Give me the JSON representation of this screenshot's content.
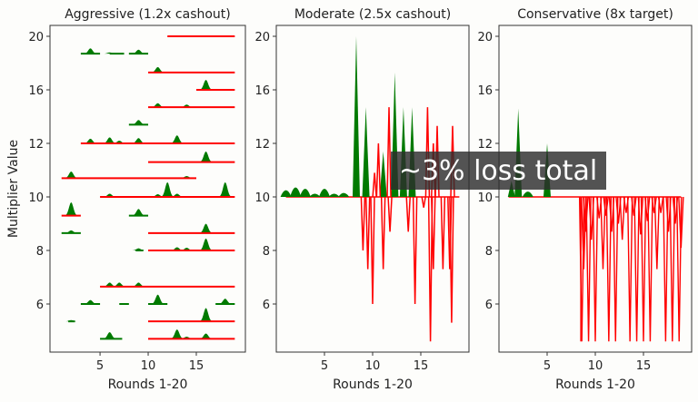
{
  "chart_data": [
    {
      "type": "line",
      "title": "Aggressive (1.2x cashout)",
      "xlabel": "Rounds 1-20",
      "ylabel": "Multiplier Value",
      "xticks": [
        5,
        10,
        15
      ],
      "yticks": [
        20,
        16,
        12,
        10,
        8,
        6
      ],
      "xlim": [
        -0.2,
        20.1
      ],
      "ylim": [
        4.2,
        20.8
      ],
      "colors": {
        "win": "#007a00",
        "loss": "#ff0000"
      },
      "rows": [
        {
          "y": 20,
          "red": [
            [
              12,
              19
            ]
          ],
          "green": [],
          "peaks": []
        },
        {
          "y": 18.7,
          "red": [],
          "green": [
            [
              3,
              5
            ],
            [
              6,
              7.5
            ],
            [
              8,
              10
            ]
          ],
          "peaks": [
            [
              4,
              19.1
            ],
            [
              6,
              18.8
            ],
            [
              9,
              19.0
            ]
          ]
        },
        {
          "y": 17.3,
          "red": [
            [
              10,
              19
            ]
          ],
          "green": [],
          "peaks": [
            [
              11,
              17.7
            ]
          ]
        },
        {
          "y": 16,
          "red": [
            [
              15,
              19
            ]
          ],
          "green": [],
          "peaks": [
            [
              16,
              16.75
            ]
          ]
        },
        {
          "y": 14.7,
          "red": [
            [
              10,
              19
            ]
          ],
          "green": [],
          "peaks": [
            [
              11,
              15.0
            ],
            [
              14,
              14.9
            ]
          ]
        },
        {
          "y": 13.4,
          "red": [],
          "green": [
            [
              8,
              10
            ]
          ],
          "peaks": [
            [
              9,
              13.75
            ]
          ]
        },
        {
          "y": 12,
          "red": [
            [
              3,
              19
            ]
          ],
          "green": [],
          "peaks": [
            [
              4,
              12.35
            ],
            [
              6,
              12.45
            ],
            [
              7,
              12.2
            ],
            [
              9,
              12.4
            ],
            [
              13,
              12.6
            ]
          ]
        },
        {
          "y": 11.3,
          "red": [
            [
              10,
              19
            ]
          ],
          "green": [],
          "peaks": [
            [
              16,
              11.7
            ]
          ]
        },
        {
          "y": 10.7,
          "red": [
            [
              1,
              15
            ]
          ],
          "green": [],
          "peaks": [
            [
              2,
              10.95
            ],
            [
              14,
              10.78
            ]
          ]
        },
        {
          "y": 10,
          "red": [
            [
              5,
              19
            ]
          ],
          "green": [],
          "peaks": [
            [
              6,
              10.12
            ],
            [
              11,
              10.1
            ],
            [
              12,
              10.55
            ],
            [
              13,
              10.12
            ],
            [
              18,
              10.55
            ]
          ]
        },
        {
          "y": 9.3,
          "red": [
            [
              1,
              3
            ]
          ],
          "green": [
            [
              8,
              10
            ]
          ],
          "peaks": [
            [
              2,
              9.8
            ],
            [
              9,
              9.55
            ]
          ]
        },
        {
          "y": 8.65,
          "red": [
            [
              10,
              19
            ]
          ],
          "green": [
            [
              1,
              3
            ]
          ],
          "peaks": [
            [
              2,
              8.75
            ],
            [
              16,
              9.0
            ]
          ]
        },
        {
          "y": 8,
          "red": [
            [
              10,
              19
            ]
          ],
          "green": [
            [
              8.7,
              9.5
            ]
          ],
          "peaks": [
            [
              9,
              8.08
            ],
            [
              13,
              8.12
            ],
            [
              14,
              8.1
            ],
            [
              16,
              8.45
            ]
          ]
        },
        {
          "y": 6.65,
          "red": [
            [
              5,
              19
            ]
          ],
          "green": [],
          "peaks": [
            [
              6,
              6.8
            ],
            [
              7,
              6.8
            ],
            [
              9,
              6.8
            ]
          ]
        },
        {
          "y": 6,
          "red": [],
          "green": [
            [
              3,
              5
            ],
            [
              7,
              8
            ],
            [
              10,
              12
            ],
            [
              17,
              19
            ]
          ],
          "peaks": [
            [
              4,
              6.15
            ],
            [
              11,
              6.35
            ],
            [
              18,
              6.2
            ]
          ]
        },
        {
          "y": 5.35,
          "red": [
            [
              10,
              19
            ]
          ],
          "green": [
            [
              1.7,
              2.4
            ]
          ],
          "peaks": [
            [
              2,
              5.4
            ],
            [
              16,
              5.85
            ]
          ]
        },
        {
          "y": 4.7,
          "red": [
            [
              10,
              19
            ]
          ],
          "green": [
            [
              5,
              7.3
            ]
          ],
          "peaks": [
            [
              6,
              4.95
            ],
            [
              13,
              5.05
            ],
            [
              14,
              4.78
            ],
            [
              16,
              4.9
            ]
          ]
        }
      ]
    },
    {
      "type": "line",
      "title": "Moderate (2.5x cashout)",
      "xlabel": "Rounds 1-20",
      "xticks": [
        5,
        10,
        15
      ],
      "yticks": [
        20,
        16,
        12,
        10,
        8,
        6
      ],
      "xlim": [
        0,
        20
      ],
      "ylim": [
        4.2,
        20.8
      ],
      "baseline": 10,
      "baseline_range": [
        1,
        19
      ],
      "green_spikes": [
        [
          1,
          10.25
        ],
        [
          2,
          10.35
        ],
        [
          3,
          10.3
        ],
        [
          4,
          10.12
        ],
        [
          5,
          10.3
        ],
        [
          6,
          10.12
        ],
        [
          7,
          10.15
        ],
        [
          8.3,
          20
        ],
        [
          9.3,
          14.7
        ],
        [
          11.1,
          11.7
        ],
        [
          12.3,
          17.3
        ],
        [
          13.2,
          14.7
        ],
        [
          14.1,
          14.7
        ]
      ],
      "red_spikes": [
        [
          9,
          8
        ],
        [
          9.5,
          7.3
        ],
        [
          10,
          6
        ],
        [
          10.2,
          10.9
        ],
        [
          10.6,
          12
        ],
        [
          11.1,
          7.3
        ],
        [
          11.7,
          14.7
        ],
        [
          11.8,
          8.7
        ],
        [
          13.7,
          8.7
        ],
        [
          14.4,
          6
        ],
        [
          15.3,
          9.6
        ],
        [
          15.7,
          14.7
        ],
        [
          16,
          4.6
        ],
        [
          16.3,
          12
        ],
        [
          16.3,
          7.3
        ],
        [
          16.7,
          13.3
        ],
        [
          17.3,
          7.3
        ],
        [
          18,
          7.3
        ],
        [
          18.2,
          5.3
        ],
        [
          18.3,
          13.3
        ]
      ]
    },
    {
      "type": "line",
      "title": "Conservative (8x target)",
      "xlabel": "Rounds 1-20",
      "xticks": [
        5,
        10,
        15
      ],
      "yticks": [
        20,
        16,
        12,
        10,
        8,
        6
      ],
      "xlim": [
        0,
        20
      ],
      "ylim": [
        4.2,
        20.8
      ],
      "baseline": 10,
      "baseline_range": [
        1,
        8.5
      ],
      "red_top": 10,
      "red_range": [
        8.5,
        18.9
      ],
      "green_spikes": [
        [
          1.3,
          10.6
        ],
        [
          2,
          14.6
        ],
        [
          3,
          10.2
        ],
        [
          5,
          12
        ]
      ],
      "red_spikes": [
        [
          8.6,
          4.6
        ],
        [
          8.8,
          7.3
        ],
        [
          9.0,
          8.7
        ],
        [
          9.3,
          4.6
        ],
        [
          9.6,
          8.4
        ],
        [
          10,
          4.6
        ],
        [
          10.4,
          9.2
        ],
        [
          10.8,
          7.3
        ],
        [
          11.1,
          9.3
        ],
        [
          11.4,
          4.6
        ],
        [
          11.7,
          8.7
        ],
        [
          12.1,
          4.6
        ],
        [
          12.4,
          9.0
        ],
        [
          12.8,
          8.4
        ],
        [
          13.2,
          9.4
        ],
        [
          13.6,
          4.6
        ],
        [
          14.0,
          9.3
        ],
        [
          14.3,
          4.6
        ],
        [
          14.7,
          8.6
        ],
        [
          15.0,
          4.6
        ],
        [
          15.4,
          9.1
        ],
        [
          15.7,
          4.6
        ],
        [
          16.1,
          9.4
        ],
        [
          16.4,
          7.3
        ],
        [
          16.8,
          9.4
        ],
        [
          17.3,
          4.6
        ],
        [
          17.6,
          8.7
        ],
        [
          18.0,
          4.6
        ],
        [
          18.3,
          9.0
        ],
        [
          18.7,
          4.6
        ],
        [
          18.9,
          8.1
        ]
      ]
    }
  ],
  "overlay": {
    "text": "~3% loss total"
  }
}
